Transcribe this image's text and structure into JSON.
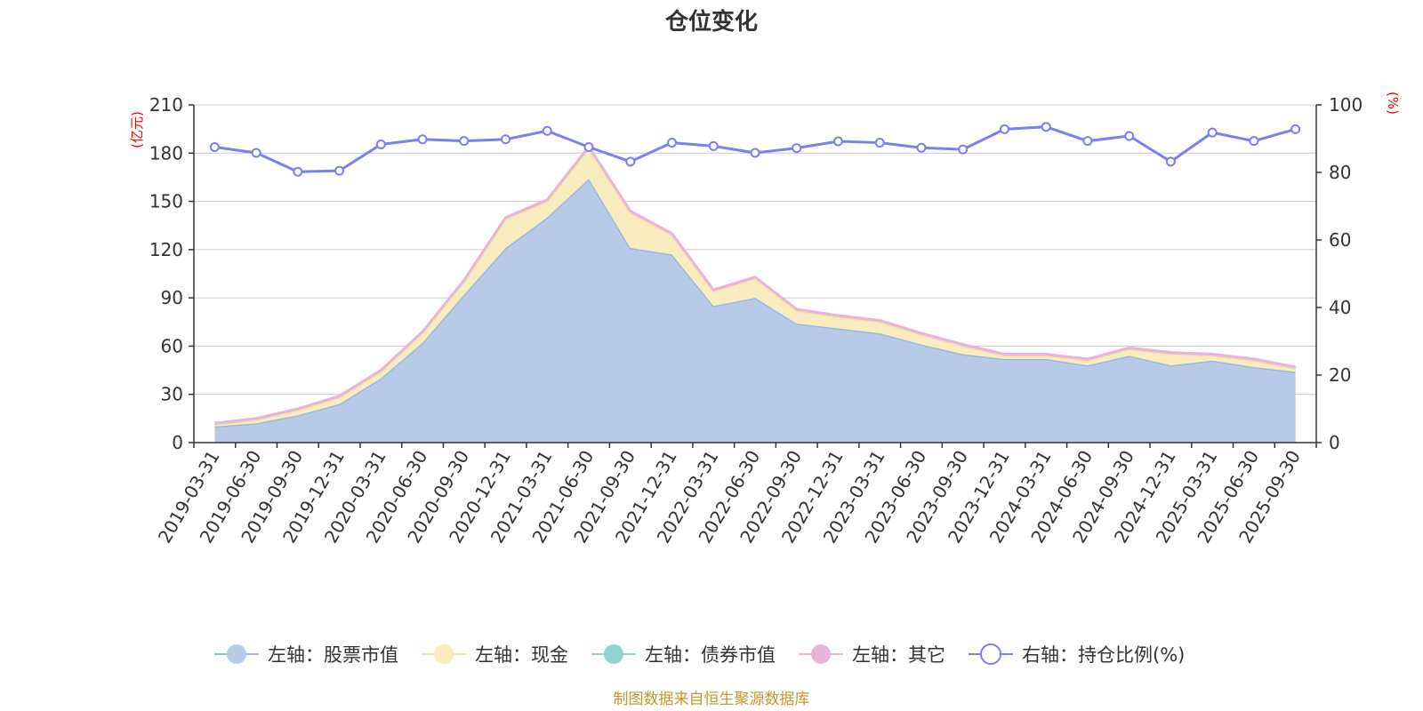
{
  "chart_data": {
    "type": "area",
    "title": "仓位变化",
    "left_axis_unit": "(亿元)",
    "right_axis_unit": "(%)",
    "left_ylim": [
      0,
      210
    ],
    "left_ticks": [
      0,
      30,
      60,
      90,
      120,
      150,
      180,
      210
    ],
    "right_ylim": [
      0,
      100
    ],
    "right_ticks": [
      0,
      20,
      40,
      60,
      80,
      100
    ],
    "categories": [
      "2019-03-31",
      "2019-06-30",
      "2019-09-30",
      "2019-12-31",
      "2020-03-31",
      "2020-06-30",
      "2020-09-30",
      "2020-12-31",
      "2021-03-31",
      "2021-06-30",
      "2021-09-30",
      "2021-12-31",
      "2022-03-31",
      "2022-06-30",
      "2022-09-30",
      "2022-12-31",
      "2023-03-31",
      "2023-06-30",
      "2023-09-30",
      "2023-12-31",
      "2024-03-31",
      "2024-06-30",
      "2024-09-30",
      "2024-12-31",
      "2025-03-31",
      "2025-06-30",
      "2025-09-30"
    ],
    "series": [
      {
        "name": "左轴：股票市值",
        "axis": "left",
        "stack": true,
        "color": "#9ab8e0",
        "fill": "#b7cbe9",
        "values": [
          10,
          12,
          17,
          24,
          40,
          62,
          92,
          121,
          140,
          164,
          121,
          117,
          85,
          90,
          74,
          71,
          68,
          61,
          55,
          52,
          52,
          48,
          54,
          48,
          51,
          47,
          44
        ]
      },
      {
        "name": "左轴：现金",
        "axis": "left",
        "stack": true,
        "color": "#f5e6a5",
        "fill": "#f9ecbe",
        "values": [
          1,
          2,
          3,
          4,
          4,
          6,
          8,
          18,
          10,
          19,
          22,
          12,
          9,
          12,
          8,
          7,
          7,
          6,
          5,
          2,
          2,
          3,
          4,
          7,
          3,
          4,
          2
        ]
      },
      {
        "name": "左轴：债券市值",
        "axis": "left",
        "stack": true,
        "color": "#8fd4d1",
        "fill": "#8fd4d1",
        "values": [
          0,
          0,
          0,
          0,
          0,
          0,
          0,
          0,
          0,
          0,
          0,
          0,
          0,
          0,
          0,
          0,
          0,
          0,
          0,
          0,
          0,
          0,
          0,
          0,
          0,
          0,
          0
        ]
      },
      {
        "name": "左轴：其它",
        "axis": "left",
        "stack": true,
        "color": "#e8b4dc",
        "fill": "#e8b4dc",
        "values": [
          1,
          1,
          1,
          1,
          1,
          1,
          1,
          1,
          1,
          1,
          1,
          1,
          1,
          1,
          1,
          1,
          1,
          1,
          1,
          1,
          1,
          1,
          1,
          1,
          1,
          1,
          1
        ]
      },
      {
        "name": "右轴：持仓比例(%)",
        "axis": "right",
        "stack": false,
        "color": "#7b7ff0",
        "values": [
          87.5,
          85.8,
          80.2,
          80.5,
          88.3,
          89.8,
          89.3,
          89.8,
          92.3,
          87.5,
          83.2,
          88.8,
          87.8,
          85.8,
          87.2,
          89.2,
          88.8,
          87.3,
          86.8,
          92.8,
          93.5,
          89.3,
          90.8,
          83.2,
          91.8,
          89.3,
          92.8
        ]
      }
    ],
    "legend_position": "bottom-center"
  },
  "footer": "制图数据来自恒生聚源数据库"
}
